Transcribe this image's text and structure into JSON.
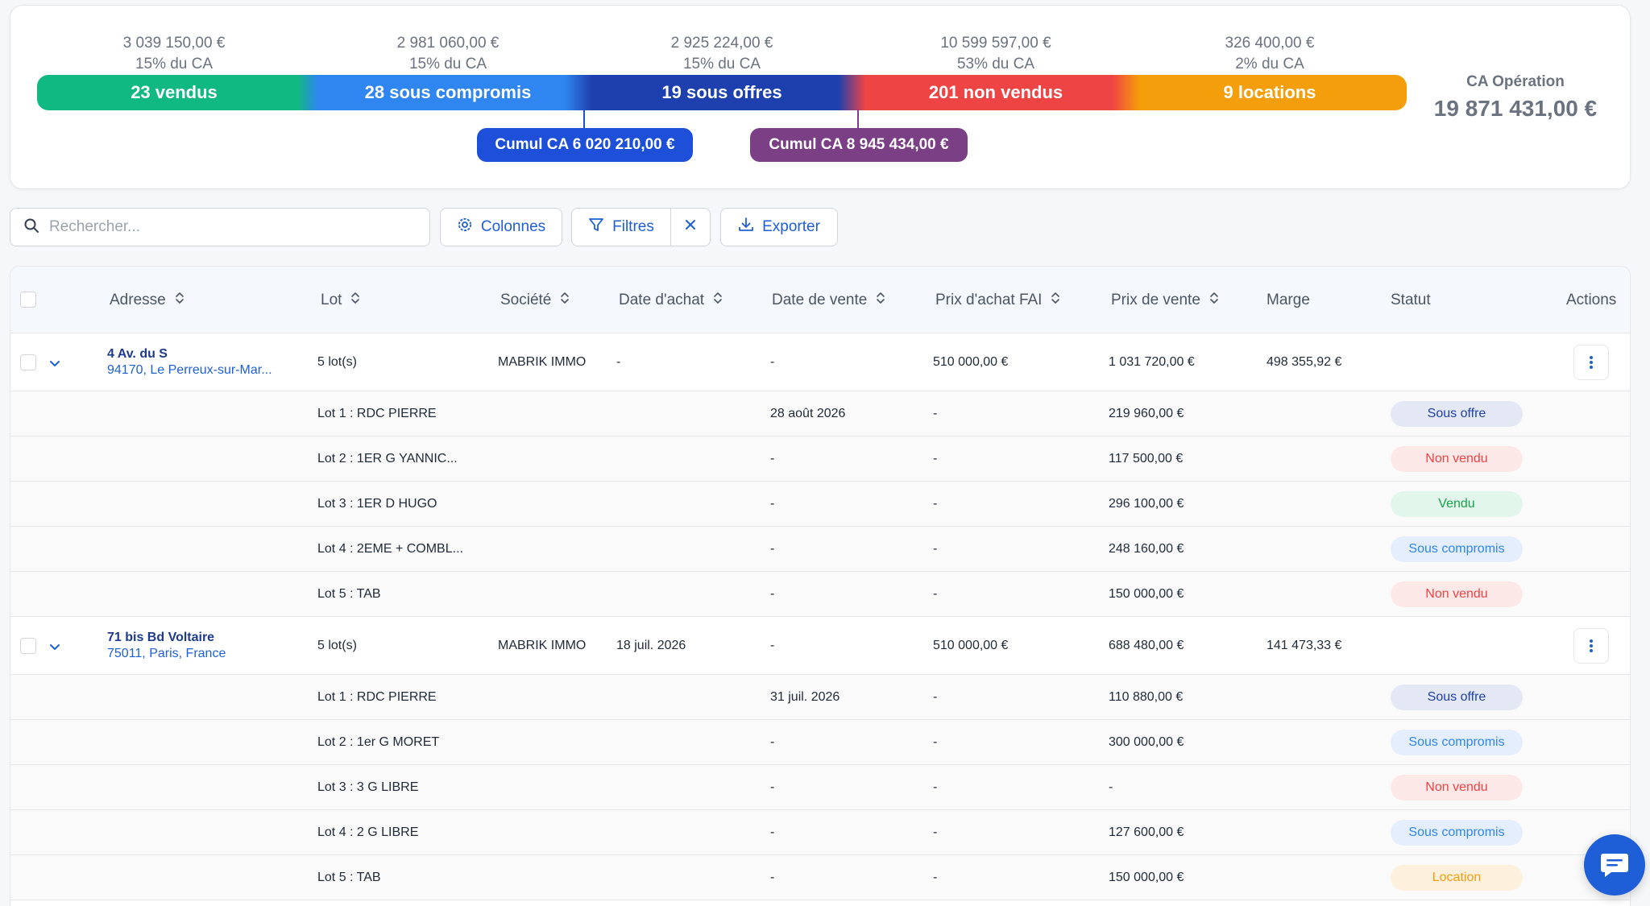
{
  "summary": {
    "segments": [
      {
        "amount": "3 039 150,00 €",
        "pct": "15% du CA",
        "label": "23 vendus"
      },
      {
        "amount": "2 981 060,00 €",
        "pct": "15% du CA",
        "label": "28 sous compromis"
      },
      {
        "amount": "2 925 224,00 €",
        "pct": "15% du CA",
        "label": "19 sous offres"
      },
      {
        "amount": "10 599 597,00 €",
        "pct": "53% du CA",
        "label": "201 non vendus"
      },
      {
        "amount": "326 400,00 €",
        "pct": "2% du CA",
        "label": "9 locations"
      }
    ],
    "cumul1": "Cumul CA 6 020 210,00 €",
    "cumul2": "Cumul CA 8 945 434,00 €",
    "ca_title": "CA Opération",
    "ca_value": "19 871 431,00 €",
    "colors": {
      "vendus": "#10b981",
      "compromis": "#2f86f0",
      "offres": "#1e40af",
      "nonvendus": "#ef4444",
      "locations": "#f59e0b",
      "cumul1": "#1e4fd8",
      "cumul2": "#7b3f86"
    }
  },
  "toolbar": {
    "search_placeholder": "Rechercher...",
    "columns_label": "Colonnes",
    "filters_label": "Filtres",
    "export_label": "Exporter"
  },
  "table": {
    "headers": {
      "adresse": "Adresse",
      "lot": "Lot",
      "societe": "Société",
      "date_achat": "Date d'achat",
      "date_vente": "Date de vente",
      "prix_achat": "Prix d'achat FAI",
      "prix_vente": "Prix de vente",
      "marge": "Marge",
      "statut": "Statut",
      "actions": "Actions"
    },
    "groups": [
      {
        "street": "4 Av. du S",
        "city": "94170, Le Perreux-sur-Mar...",
        "lots": "5 lot(s)",
        "societe": "MABRIK IMMO",
        "date_achat": "-",
        "date_vente": "-",
        "prix_achat": "510 000,00 €",
        "prix_vente": "1 031 720,00 €",
        "marge": "498 355,92 €",
        "sub": [
          {
            "lot": "Lot 1 : RDC PIERRE",
            "date_vente": "28 août 2026",
            "prix_achat": "-",
            "prix_vente": "219 960,00 €",
            "statut": "Sous offre"
          },
          {
            "lot": "Lot 2 : 1ER G YANNIC...",
            "date_vente": "-",
            "prix_achat": "-",
            "prix_vente": "117 500,00 €",
            "statut": "Non vendu"
          },
          {
            "lot": "Lot 3 : 1ER D HUGO",
            "date_vente": "-",
            "prix_achat": "-",
            "prix_vente": "296 100,00 €",
            "statut": "Vendu"
          },
          {
            "lot": "Lot 4 : 2EME + COMBL...",
            "date_vente": "-",
            "prix_achat": "-",
            "prix_vente": "248 160,00 €",
            "statut": "Sous compromis"
          },
          {
            "lot": "Lot 5 : TAB",
            "date_vente": "-",
            "prix_achat": "-",
            "prix_vente": "150 000,00 €",
            "statut": "Non vendu"
          }
        ]
      },
      {
        "street": "71 bis Bd Voltaire",
        "city": "75011, Paris, France",
        "lots": "5 lot(s)",
        "societe": "MABRIK IMMO",
        "date_achat": "18 juil. 2026",
        "date_vente": "-",
        "prix_achat": "510 000,00 €",
        "prix_vente": "688 480,00 €",
        "marge": "141 473,33 €",
        "sub": [
          {
            "lot": "Lot 1 : RDC PIERRE",
            "date_vente": "31 juil. 2026",
            "prix_achat": "-",
            "prix_vente": "110 880,00 €",
            "statut": "Sous offre"
          },
          {
            "lot": "Lot 2 : 1er G MORET",
            "date_vente": "-",
            "prix_achat": "-",
            "prix_vente": "300 000,00 €",
            "statut": "Sous compromis"
          },
          {
            "lot": "Lot 3 : 3 G LIBRE",
            "date_vente": "-",
            "prix_achat": "-",
            "prix_vente": "-",
            "statut": "Non vendu"
          },
          {
            "lot": "Lot 4 : 2 G LIBRE",
            "date_vente": "-",
            "prix_achat": "-",
            "prix_vente": "127 600,00 €",
            "statut": "Sous compromis"
          },
          {
            "lot": "Lot 5 : TAB",
            "date_vente": "-",
            "prix_achat": "-",
            "prix_vente": "150 000,00 €",
            "statut": "Location"
          }
        ]
      }
    ]
  },
  "icons": {
    "search": "search-icon",
    "columns": "gear-icon",
    "filters": "filter-icon",
    "clear": "close-icon",
    "export": "download-icon",
    "chat": "chat-icon"
  }
}
